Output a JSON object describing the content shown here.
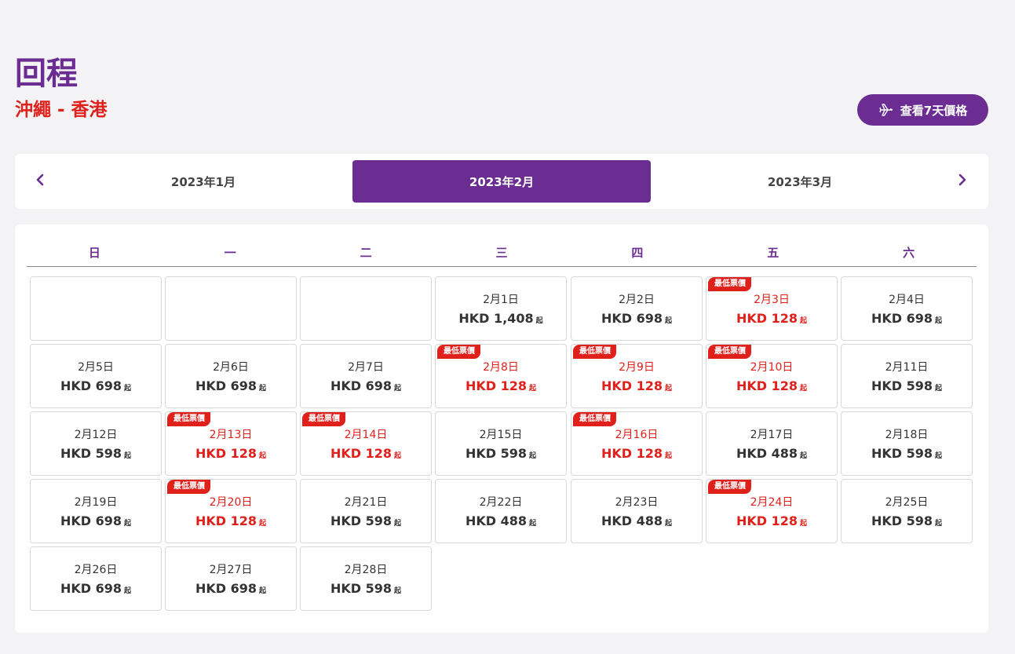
{
  "header": {
    "title": "回程",
    "route": "沖繩 - 香港",
    "week_button_label": "查看7天價格"
  },
  "months": {
    "prev": "2023年1月",
    "current": "2023年2月",
    "next": "2023年3月"
  },
  "weekdays": [
    "日",
    "一",
    "二",
    "三",
    "四",
    "五",
    "六"
  ],
  "labels": {
    "from": "起",
    "lowest": "最低票價"
  },
  "days": [
    {
      "date": "2月1日",
      "price": "HKD 1,408",
      "low": false
    },
    {
      "date": "2月2日",
      "price": "HKD 698",
      "low": false
    },
    {
      "date": "2月3日",
      "price": "HKD 128",
      "low": true
    },
    {
      "date": "2月4日",
      "price": "HKD 698",
      "low": false
    },
    {
      "date": "2月5日",
      "price": "HKD 698",
      "low": false
    },
    {
      "date": "2月6日",
      "price": "HKD 698",
      "low": false
    },
    {
      "date": "2月7日",
      "price": "HKD 698",
      "low": false
    },
    {
      "date": "2月8日",
      "price": "HKD 128",
      "low": true
    },
    {
      "date": "2月9日",
      "price": "HKD 128",
      "low": true
    },
    {
      "date": "2月10日",
      "price": "HKD 128",
      "low": true
    },
    {
      "date": "2月11日",
      "price": "HKD 598",
      "low": false
    },
    {
      "date": "2月12日",
      "price": "HKD 598",
      "low": false
    },
    {
      "date": "2月13日",
      "price": "HKD 128",
      "low": true
    },
    {
      "date": "2月14日",
      "price": "HKD 128",
      "low": true
    },
    {
      "date": "2月15日",
      "price": "HKD 598",
      "low": false
    },
    {
      "date": "2月16日",
      "price": "HKD 128",
      "low": true
    },
    {
      "date": "2月17日",
      "price": "HKD 488",
      "low": false
    },
    {
      "date": "2月18日",
      "price": "HKD 598",
      "low": false
    },
    {
      "date": "2月19日",
      "price": "HKD 698",
      "low": false
    },
    {
      "date": "2月20日",
      "price": "HKD 128",
      "low": true
    },
    {
      "date": "2月21日",
      "price": "HKD 598",
      "low": false
    },
    {
      "date": "2月22日",
      "price": "HKD 488",
      "low": false
    },
    {
      "date": "2月23日",
      "price": "HKD 488",
      "low": false
    },
    {
      "date": "2月24日",
      "price": "HKD 128",
      "low": true
    },
    {
      "date": "2月25日",
      "price": "HKD 598",
      "low": false
    },
    {
      "date": "2月26日",
      "price": "HKD 698",
      "low": false
    },
    {
      "date": "2月27日",
      "price": "HKD 698",
      "low": false
    },
    {
      "date": "2月28日",
      "price": "HKD 598",
      "low": false
    }
  ],
  "colors": {
    "brand": "#6b2d91",
    "accent": "#e0201b",
    "background": "#f3f3f6"
  },
  "icons": {
    "week_button": "plane-icon",
    "prev": "chevron-left-icon",
    "next": "chevron-right-icon"
  }
}
